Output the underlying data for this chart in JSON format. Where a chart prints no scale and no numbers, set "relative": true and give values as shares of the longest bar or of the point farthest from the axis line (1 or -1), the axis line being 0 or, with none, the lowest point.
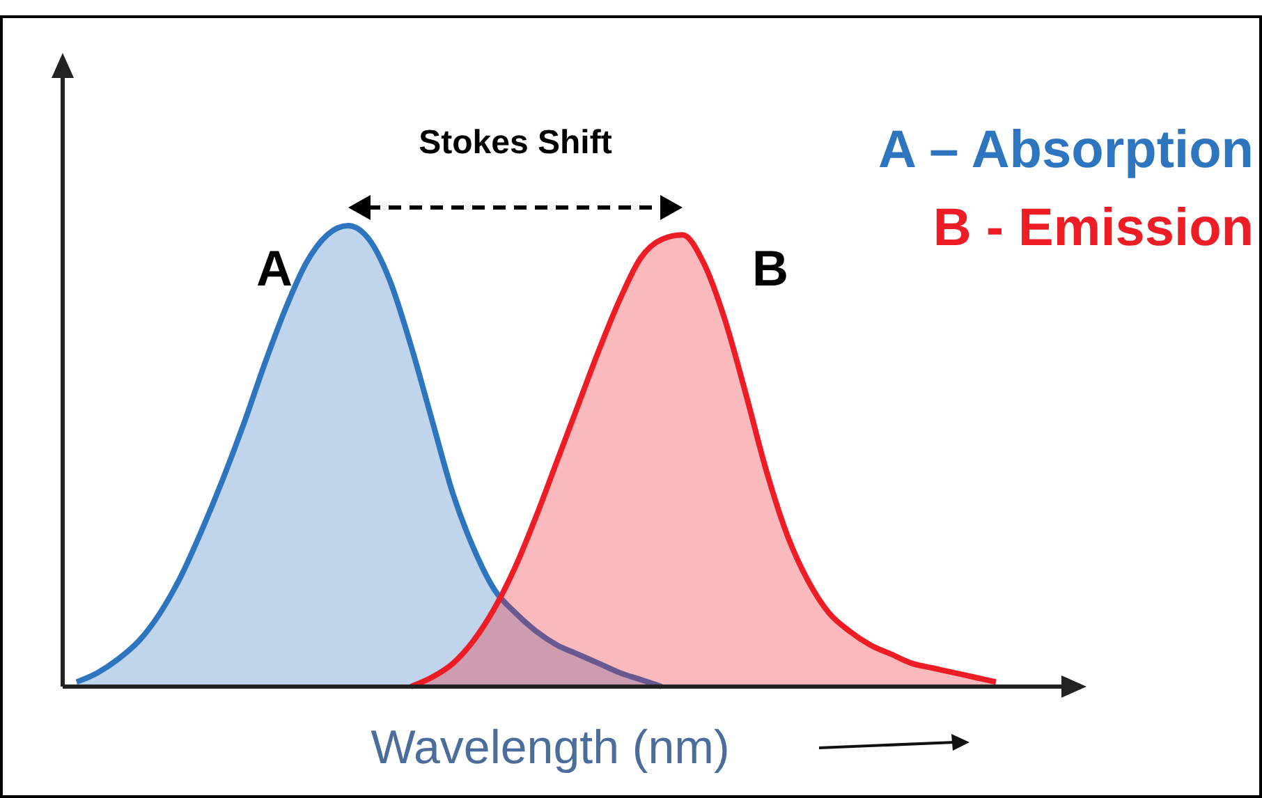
{
  "chart_data": {
    "type": "area",
    "relative": true,
    "xlabel": "Wavelength (nm)",
    "legend": "top right",
    "categories": [
      null,
      null,
      null,
      null,
      null,
      null,
      null,
      null,
      null,
      null,
      null,
      null,
      null,
      null,
      null,
      null,
      null,
      null,
      null,
      null,
      null,
      null,
      null,
      null,
      null,
      null,
      null,
      null,
      null,
      null,
      null,
      null,
      null,
      null,
      null,
      null,
      null,
      null,
      null,
      null,
      null,
      null,
      null,
      null,
      null
    ],
    "series": [
      {
        "name": "A – Absorption",
        "color": "#2e75c0",
        "values": [
          0.01,
          0.03,
          0.06,
          0.1,
          0.16,
          0.24,
          0.34,
          0.45,
          0.57,
          0.7,
          0.82,
          0.92,
          0.98,
          1,
          0.97,
          0.88,
          0.74,
          0.58,
          0.42,
          0.3,
          0.21,
          0.16,
          0.12,
          0.09,
          0.07,
          0.05,
          0.03,
          0.015,
          0,
          null,
          null,
          null,
          null,
          null,
          null,
          null,
          null,
          null,
          null,
          null,
          null,
          null,
          null,
          null,
          null
        ]
      },
      {
        "name": "B - Emission",
        "color": "#ee1c25",
        "values": [
          null,
          null,
          null,
          null,
          null,
          null,
          null,
          null,
          null,
          null,
          null,
          null,
          null,
          null,
          null,
          null,
          0,
          0.02,
          0.05,
          0.1,
          0.17,
          0.26,
          0.37,
          0.49,
          0.61,
          0.73,
          0.84,
          0.93,
          0.97,
          0.98,
          0.92,
          0.8,
          0.64,
          0.47,
          0.33,
          0.23,
          0.16,
          0.12,
          0.09,
          0.07,
          0.05,
          0.04,
          0.03,
          0.02,
          0.01
        ]
      }
    ],
    "annotations": [
      "Stokes Shift",
      "A",
      "B"
    ]
  }
}
